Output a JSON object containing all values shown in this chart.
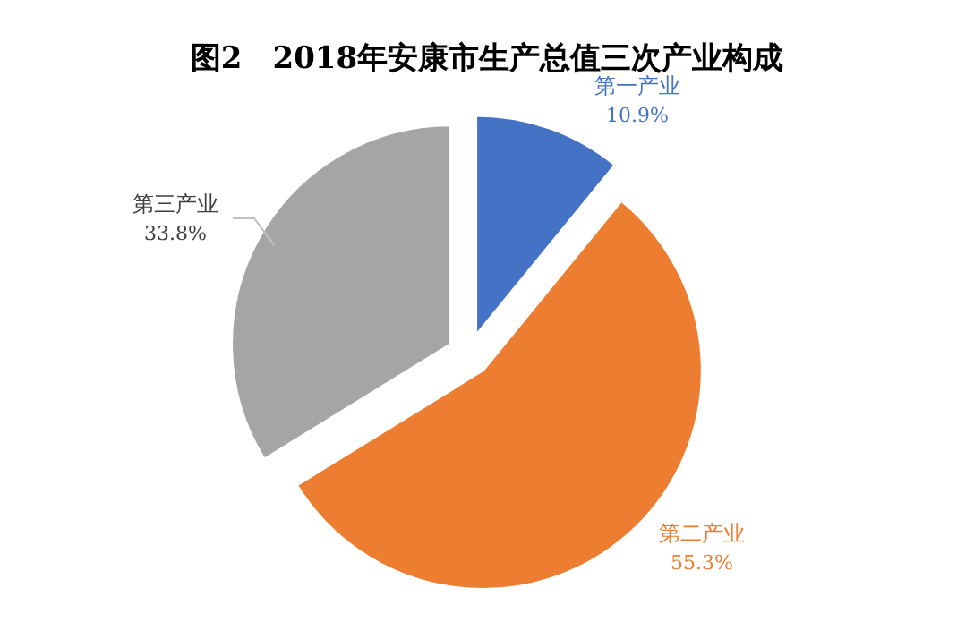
{
  "chart_data": {
    "type": "pie",
    "title": "图2　2018年安康市生产总值三次产业构成",
    "categories": [
      "第一产业",
      "第二产业",
      "第三产业"
    ],
    "values": [
      10.9,
      55.3,
      33.8
    ],
    "colors": [
      "#4472c4",
      "#ed7d31",
      "#a5a5a5"
    ],
    "value_labels": [
      "10.9%",
      "55.3%",
      "33.8%"
    ],
    "legend": false
  }
}
